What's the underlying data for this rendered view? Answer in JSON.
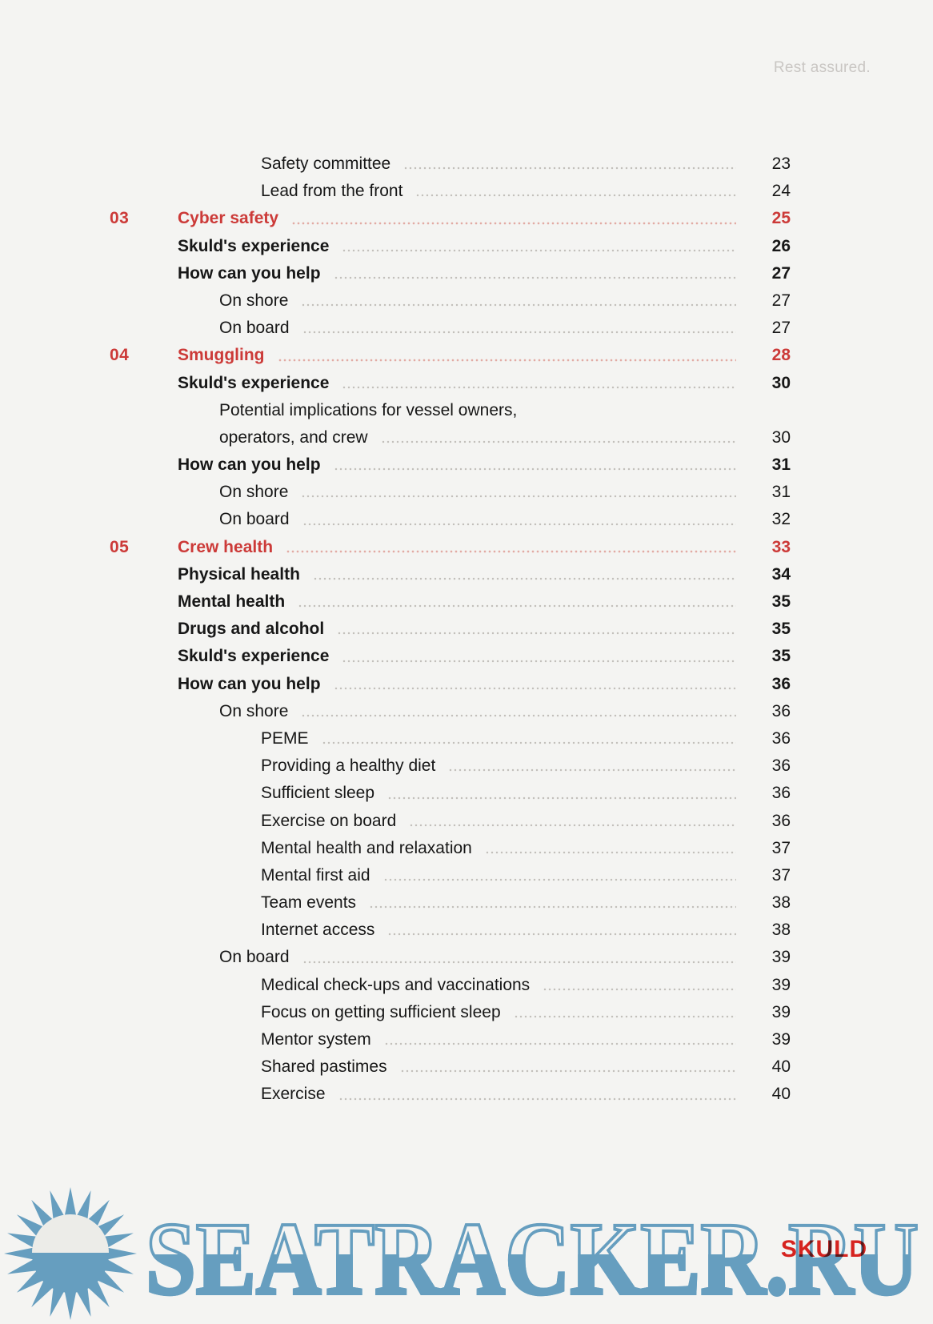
{
  "page": {
    "tagline": "Rest assured."
  },
  "colors": {
    "background": "#f4f4f2",
    "accent_red": "#cc3a38",
    "text_black": "#171717",
    "tagline_gray": "#c9c6c3",
    "watermark_blue": "#6ba5c9",
    "brand_red": "#d6231f"
  },
  "toc": {
    "rows": [
      {
        "num": "",
        "label": "Safety committee",
        "page": "23",
        "level": 3,
        "bold": false,
        "red": false,
        "leader": true
      },
      {
        "num": "",
        "label": "Lead from the front",
        "page": "24",
        "level": 3,
        "bold": false,
        "red": false,
        "leader": true
      },
      {
        "num": "03",
        "label": "Cyber safety",
        "page": "25",
        "level": 1,
        "bold": true,
        "red": true,
        "leader": true
      },
      {
        "num": "",
        "label": "Skuld's experience",
        "page": "26",
        "level": 1,
        "bold": true,
        "red": false,
        "leader": true
      },
      {
        "num": "",
        "label": "How can you help",
        "page": "27",
        "level": 1,
        "bold": true,
        "red": false,
        "leader": true
      },
      {
        "num": "",
        "label": "On shore",
        "page": "27",
        "level": 2,
        "bold": false,
        "red": false,
        "leader": true
      },
      {
        "num": "",
        "label": "On board",
        "page": "27",
        "level": 2,
        "bold": false,
        "red": false,
        "leader": true
      },
      {
        "num": "04",
        "label": "Smuggling",
        "page": "28",
        "level": 1,
        "bold": true,
        "red": true,
        "leader": true
      },
      {
        "num": "",
        "label": "Skuld's experience",
        "page": "30",
        "level": 1,
        "bold": true,
        "red": false,
        "leader": true
      },
      {
        "num": "",
        "label": "Potential implications for vessel owners,",
        "page": "",
        "level": 2,
        "bold": false,
        "red": false,
        "leader": false
      },
      {
        "num": "",
        "label": "operators, and crew",
        "page": "30",
        "level": 2,
        "bold": false,
        "red": false,
        "leader": true
      },
      {
        "num": "",
        "label": "How can you help",
        "page": "31",
        "level": 1,
        "bold": true,
        "red": false,
        "leader": true
      },
      {
        "num": "",
        "label": "On shore",
        "page": "31",
        "level": 2,
        "bold": false,
        "red": false,
        "leader": true
      },
      {
        "num": "",
        "label": "On board",
        "page": "32",
        "level": 2,
        "bold": false,
        "red": false,
        "leader": true
      },
      {
        "num": "05",
        "label": "Crew health",
        "page": "33",
        "level": 1,
        "bold": true,
        "red": true,
        "leader": true
      },
      {
        "num": "",
        "label": "Physical health",
        "page": "34",
        "level": 1,
        "bold": true,
        "red": false,
        "leader": true
      },
      {
        "num": "",
        "label": "Mental health",
        "page": "35",
        "level": 1,
        "bold": true,
        "red": false,
        "leader": true
      },
      {
        "num": "",
        "label": "Drugs and alcohol",
        "page": "35",
        "level": 1,
        "bold": true,
        "red": false,
        "leader": true
      },
      {
        "num": "",
        "label": "Skuld's experience",
        "page": "35",
        "level": 1,
        "bold": true,
        "red": false,
        "leader": true
      },
      {
        "num": "",
        "label": "How can you help",
        "page": "36",
        "level": 1,
        "bold": true,
        "red": false,
        "leader": true
      },
      {
        "num": "",
        "label": "On shore",
        "page": "36",
        "level": 2,
        "bold": false,
        "red": false,
        "leader": true
      },
      {
        "num": "",
        "label": "PEME",
        "page": "36",
        "level": 3,
        "bold": false,
        "red": false,
        "leader": true
      },
      {
        "num": "",
        "label": "Providing a healthy diet",
        "page": "36",
        "level": 3,
        "bold": false,
        "red": false,
        "leader": true
      },
      {
        "num": "",
        "label": "Sufficient sleep",
        "page": "36",
        "level": 3,
        "bold": false,
        "red": false,
        "leader": true
      },
      {
        "num": "",
        "label": "Exercise on board",
        "page": "36",
        "level": 3,
        "bold": false,
        "red": false,
        "leader": true
      },
      {
        "num": "",
        "label": "Mental health and relaxation",
        "page": "37",
        "level": 3,
        "bold": false,
        "red": false,
        "leader": true
      },
      {
        "num": "",
        "label": "Mental first aid",
        "page": "37",
        "level": 3,
        "bold": false,
        "red": false,
        "leader": true
      },
      {
        "num": "",
        "label": "Team events",
        "page": "38",
        "level": 3,
        "bold": false,
        "red": false,
        "leader": true
      },
      {
        "num": "",
        "label": "Internet access",
        "page": "38",
        "level": 3,
        "bold": false,
        "red": false,
        "leader": true
      },
      {
        "num": "",
        "label": "On board",
        "page": "39",
        "level": 2,
        "bold": false,
        "red": false,
        "leader": true
      },
      {
        "num": "",
        "label": "Medical check-ups and vaccinations",
        "page": "39",
        "level": 3,
        "bold": false,
        "red": false,
        "leader": true
      },
      {
        "num": "",
        "label": "Focus on getting sufficient sleep",
        "page": "39",
        "level": 3,
        "bold": false,
        "red": false,
        "leader": true
      },
      {
        "num": "",
        "label": "Mentor system",
        "page": "39",
        "level": 3,
        "bold": false,
        "red": false,
        "leader": true
      },
      {
        "num": "",
        "label": "Shared pastimes",
        "page": "40",
        "level": 3,
        "bold": false,
        "red": false,
        "leader": true
      },
      {
        "num": "",
        "label": "Exercise",
        "page": "40",
        "level": 3,
        "bold": false,
        "red": false,
        "leader": true
      }
    ]
  },
  "watermark": {
    "text": "SEATRACKER.RU"
  },
  "brand": {
    "text": "SKULD"
  }
}
